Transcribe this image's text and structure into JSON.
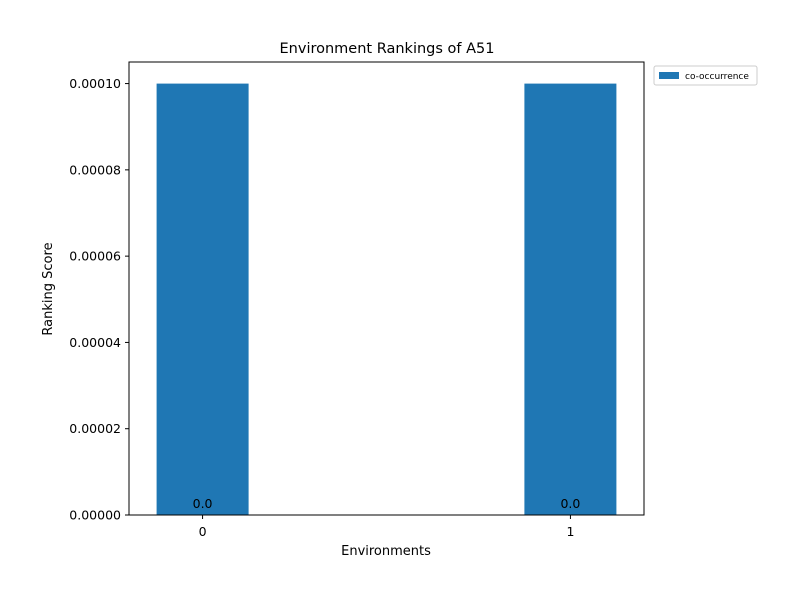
{
  "chart_data": {
    "type": "bar",
    "title": "Environment Rankings of A51",
    "xlabel": "Environments",
    "ylabel": "Ranking Score",
    "categories": [
      "0",
      "1"
    ],
    "series": [
      {
        "name": "co-occurrence",
        "values": [
          0.0001,
          0.0001
        ],
        "color": "#1f77b4"
      }
    ],
    "bar_labels": [
      "0.0",
      "0.0"
    ],
    "ylim": [
      0,
      0.000105
    ],
    "yticks": [
      0,
      2e-05,
      4e-05,
      6e-05,
      8e-05,
      0.0001
    ],
    "ytick_labels": [
      "0.00000",
      "0.00002",
      "0.00004",
      "0.00006",
      "0.00008",
      "0.00010"
    ],
    "grid": false,
    "legend_position": "outside-top-right"
  }
}
